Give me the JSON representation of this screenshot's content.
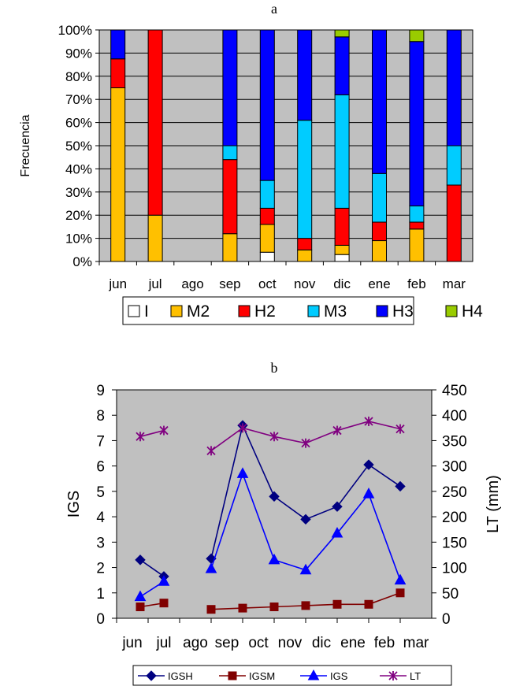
{
  "chart_data": [
    {
      "panel": "a",
      "type": "bar",
      "stacked": true,
      "percent": true,
      "title": "a",
      "ylabel": "Frecuencia",
      "categories": [
        "jun",
        "jul",
        "ago",
        "sep",
        "oct",
        "nov",
        "dic",
        "ene",
        "feb",
        "mar"
      ],
      "ylim": [
        0,
        100
      ],
      "yticks": [
        "0%",
        "10%",
        "20%",
        "30%",
        "40%",
        "50%",
        "60%",
        "70%",
        "80%",
        "90%",
        "100%"
      ],
      "legend_position": "bottom",
      "plot_background": "#c0c0c0",
      "series": [
        {
          "name": "I",
          "color": "#ffffff",
          "values": [
            0,
            0,
            null,
            0,
            4,
            0,
            3,
            0,
            0,
            0
          ]
        },
        {
          "name": "M2",
          "color": "#ffc000",
          "values": [
            75,
            20,
            null,
            12,
            12,
            5,
            4,
            9,
            14,
            0
          ]
        },
        {
          "name": "H2",
          "color": "#ff0000",
          "values": [
            12.5,
            80,
            null,
            32,
            7,
            5,
            16,
            8,
            3,
            33
          ]
        },
        {
          "name": "M3",
          "color": "#00ccff",
          "values": [
            0,
            0,
            null,
            6,
            12,
            51,
            49,
            21,
            7,
            17
          ]
        },
        {
          "name": "H3",
          "color": "#0000ff",
          "values": [
            12.5,
            0,
            null,
            50,
            65,
            39,
            25,
            62,
            71,
            50
          ]
        },
        {
          "name": "H4",
          "color": "#99cc00",
          "values": [
            0,
            0,
            null,
            0,
            0,
            0,
            3,
            0,
            5,
            0
          ]
        }
      ]
    },
    {
      "panel": "b",
      "type": "line",
      "title": "b",
      "ylabel": "IGS",
      "y2label": "LT (mm)",
      "categories": [
        "jun",
        "jul",
        "ago",
        "sep",
        "oct",
        "nov",
        "dic",
        "ene",
        "feb",
        "mar"
      ],
      "ylim": [
        0,
        9
      ],
      "y2lim": [
        0,
        450
      ],
      "yticks": [
        "0",
        "1",
        "2",
        "3",
        "4",
        "5",
        "6",
        "7",
        "8",
        "9"
      ],
      "y2ticks": [
        "0",
        "50",
        "100",
        "150",
        "200",
        "250",
        "300",
        "350",
        "400",
        "450"
      ],
      "x_positions": [
        0.25,
        1.0,
        null,
        2.5,
        3.5,
        4.5,
        5.5,
        6.5,
        7.5,
        8.5
      ],
      "legend_position": "bottom",
      "plot_background": "#c0c0c0",
      "series": [
        {
          "name": "IGSH",
          "axis": "left",
          "color": "#000080",
          "marker": "diamond",
          "values": [
            2.3,
            1.65,
            null,
            2.35,
            7.6,
            4.8,
            3.9,
            4.4,
            6.05,
            5.2
          ]
        },
        {
          "name": "IGSM",
          "axis": "left",
          "color": "#800000",
          "marker": "square",
          "values": [
            0.45,
            0.6,
            null,
            0.35,
            0.4,
            0.45,
            0.5,
            0.55,
            0.55,
            1.0
          ]
        },
        {
          "name": "IGS",
          "axis": "left",
          "color": "#0000ff",
          "marker": "triangle",
          "values": [
            0.85,
            1.45,
            null,
            1.95,
            5.7,
            2.3,
            1.9,
            3.35,
            4.9,
            1.5
          ]
        },
        {
          "name": "LT",
          "axis": "right",
          "color": "#800080",
          "marker": "star",
          "values": [
            358,
            370,
            null,
            330,
            375,
            358,
            345,
            370,
            388,
            373
          ]
        }
      ]
    }
  ]
}
